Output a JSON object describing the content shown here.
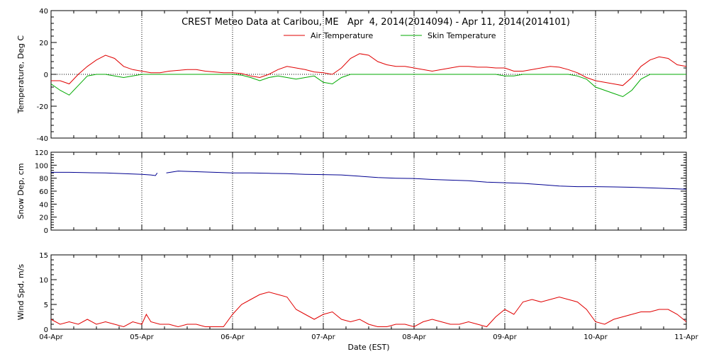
{
  "chart_data": {
    "title": "CREST Meteo Data at Caribou, ME   Apr  4, 2014(2014094) - Apr 11, 2014(2014101)",
    "xlabel": "Date (EST)",
    "x_tick_labels": [
      "04-Apr",
      "05-Apr",
      "06-Apr",
      "07-Apr",
      "08-Apr",
      "09-Apr",
      "10-Apr",
      "11-Apr"
    ],
    "x_range_days": [
      0,
      7
    ],
    "grid": "vertical dotted lines at day boundaries",
    "panels": [
      {
        "type": "line",
        "ylabel": "Temperature, Deg C",
        "ylim": [
          -40,
          40
        ],
        "yticks": [
          -40,
          -20,
          0,
          20,
          40
        ],
        "legend": {
          "placement": "top-center"
        },
        "series": [
          {
            "name": "Air Temperature",
            "color": "#e00000",
            "x": [
              0,
              0.1,
              0.2,
              0.3,
              0.4,
              0.5,
              0.6,
              0.7,
              0.8,
              0.9,
              1.0,
              1.1,
              1.2,
              1.3,
              1.4,
              1.5,
              1.6,
              1.7,
              1.8,
              1.9,
              2.0,
              2.1,
              2.2,
              2.3,
              2.4,
              2.5,
              2.6,
              2.7,
              2.8,
              2.9,
              3.0,
              3.1,
              3.2,
              3.3,
              3.4,
              3.5,
              3.6,
              3.7,
              3.8,
              3.9,
              4.0,
              4.1,
              4.2,
              4.3,
              4.4,
              4.5,
              4.6,
              4.7,
              4.8,
              4.9,
              5.0,
              5.1,
              5.2,
              5.3,
              5.4,
              5.5,
              5.6,
              5.7,
              5.8,
              5.9,
              6.0,
              6.1,
              6.2,
              6.3,
              6.4,
              6.5,
              6.6,
              6.7,
              6.8,
              6.9,
              7.0
            ],
            "values": [
              -4,
              -4,
              -6,
              0,
              5,
              9,
              12,
              10,
              5,
              3,
              2,
              1,
              1,
              2,
              2.5,
              3,
              3,
              2,
              1.5,
              1,
              1,
              0.5,
              -1,
              -2,
              0,
              3,
              5,
              4,
              3,
              1.5,
              1,
              0,
              4,
              10,
              13,
              12,
              8,
              6,
              5,
              5,
              4,
              3,
              2,
              3,
              4,
              5,
              5,
              4.5,
              4.5,
              4,
              4,
              2,
              2,
              3,
              4,
              5,
              4.5,
              3,
              1,
              -2,
              -4,
              -5,
              -6,
              -7,
              -2,
              5,
              9,
              11,
              10,
              6,
              5
            ]
          },
          {
            "name": "Skin Temperature",
            "color": "#00aa00",
            "x": [
              0,
              0.1,
              0.2,
              0.3,
              0.4,
              0.5,
              0.6,
              0.7,
              0.8,
              0.9,
              1.0,
              1.1,
              1.2,
              1.3,
              1.4,
              1.5,
              1.6,
              1.7,
              1.8,
              1.9,
              2.0,
              2.1,
              2.2,
              2.3,
              2.4,
              2.5,
              2.6,
              2.7,
              2.8,
              2.9,
              3.0,
              3.1,
              3.2,
              3.3,
              3.4,
              3.5,
              3.6,
              3.7,
              3.8,
              3.9,
              4.0,
              4.1,
              4.2,
              4.3,
              4.4,
              4.5,
              4.6,
              4.7,
              4.8,
              4.9,
              5.0,
              5.1,
              5.2,
              5.3,
              5.4,
              5.5,
              5.6,
              5.7,
              5.8,
              5.9,
              6.0,
              6.1,
              6.2,
              6.3,
              6.4,
              6.5,
              6.6,
              6.7,
              6.8,
              6.9,
              7.0
            ],
            "values": [
              -6,
              -10,
              -13,
              -7,
              -1,
              0,
              0,
              -1,
              -2,
              -1,
              0,
              0,
              0,
              0,
              0,
              0,
              0,
              0,
              0,
              0,
              0,
              -0.5,
              -2,
              -4,
              -2,
              -1,
              -2,
              -3,
              -2,
              -1,
              -5,
              -6,
              -2,
              0,
              0,
              0,
              0,
              0,
              0,
              0,
              0,
              0,
              0,
              0,
              0,
              0,
              0,
              0,
              0,
              0,
              -1,
              -1,
              0,
              0,
              0,
              0,
              0,
              0,
              -1,
              -3,
              -8,
              -10,
              -12,
              -14,
              -10,
              -3,
              0,
              0,
              0,
              0,
              0
            ]
          }
        ]
      },
      {
        "type": "line",
        "ylabel": "Snow Dep, cm",
        "ylim": [
          0,
          120
        ],
        "yticks": [
          0,
          20,
          40,
          60,
          80,
          100,
          120
        ],
        "series": [
          {
            "color": "#000090",
            "segments": [
              {
                "x": [
                  0,
                  0.2,
                  0.4,
                  0.6,
                  0.8,
                  1.0,
                  1.1,
                  1.15,
                  1.17
                ],
                "values": [
                  89,
                  89,
                  88.5,
                  88,
                  87,
                  86,
                  85,
                  84,
                  88
                ]
              },
              {
                "x": [
                  1.27,
                  1.4,
                  1.6,
                  1.8,
                  2.0,
                  2.2,
                  2.4,
                  2.6,
                  2.8,
                  3.0,
                  3.2,
                  3.4,
                  3.6,
                  3.8,
                  4.0,
                  4.2,
                  4.4,
                  4.6,
                  4.8,
                  5.0,
                  5.2,
                  5.4,
                  5.6,
                  5.8,
                  6.0,
                  6.2,
                  6.4,
                  6.6,
                  6.8,
                  7.0
                ],
                "values": [
                  88,
                  91,
                  90,
                  89,
                  88,
                  88,
                  87.5,
                  87,
                  86,
                  85.5,
                  85,
                  83,
                  81,
                  80,
                  79.5,
                  78,
                  77,
                  76,
                  74,
                  73,
                  72,
                  70,
                  68,
                  67,
                  67,
                  66.5,
                  66,
                  65,
                  64,
                  63
                ]
              }
            ]
          }
        ]
      },
      {
        "type": "line",
        "ylabel": "Wind Spd, m/s",
        "ylim": [
          0,
          15
        ],
        "yticks": [
          0,
          5,
          10,
          15
        ],
        "series": [
          {
            "color": "#e00000",
            "x": [
              0,
              0.1,
              0.2,
              0.3,
              0.4,
              0.5,
              0.6,
              0.7,
              0.8,
              0.9,
              1.0,
              1.05,
              1.1,
              1.2,
              1.3,
              1.4,
              1.5,
              1.6,
              1.7,
              1.8,
              1.9,
              2.0,
              2.1,
              2.2,
              2.3,
              2.4,
              2.5,
              2.6,
              2.7,
              2.8,
              2.9,
              3.0,
              3.1,
              3.2,
              3.3,
              3.4,
              3.5,
              3.6,
              3.7,
              3.8,
              3.9,
              4.0,
              4.1,
              4.2,
              4.3,
              4.4,
              4.5,
              4.6,
              4.7,
              4.8,
              4.9,
              5.0,
              5.1,
              5.2,
              5.3,
              5.4,
              5.5,
              5.6,
              5.7,
              5.8,
              5.9,
              6.0,
              6.1,
              6.2,
              6.3,
              6.4,
              6.5,
              6.6,
              6.7,
              6.8,
              6.9,
              7.0
            ],
            "values": [
              2,
              1,
              1.5,
              1,
              2,
              1,
              1.5,
              1,
              0.5,
              1.5,
              1,
              3,
              1.5,
              1,
              1,
              0.5,
              1,
              1,
              0.5,
              0.5,
              0.5,
              3,
              5,
              6,
              7,
              7.5,
              7,
              6.5,
              4,
              3,
              2,
              3,
              3.5,
              2,
              1.5,
              2,
              1,
              0.5,
              0.5,
              1,
              1,
              0.5,
              1.5,
              2,
              1.5,
              1,
              1,
              1.5,
              1,
              0.5,
              2.5,
              4,
              3,
              5.5,
              6,
              5.5,
              6,
              6.5,
              6,
              5.5,
              4,
              1.5,
              1,
              2,
              2.5,
              3,
              3.5,
              3.5,
              4,
              4,
              3,
              1.5
            ]
          }
        ]
      }
    ]
  }
}
